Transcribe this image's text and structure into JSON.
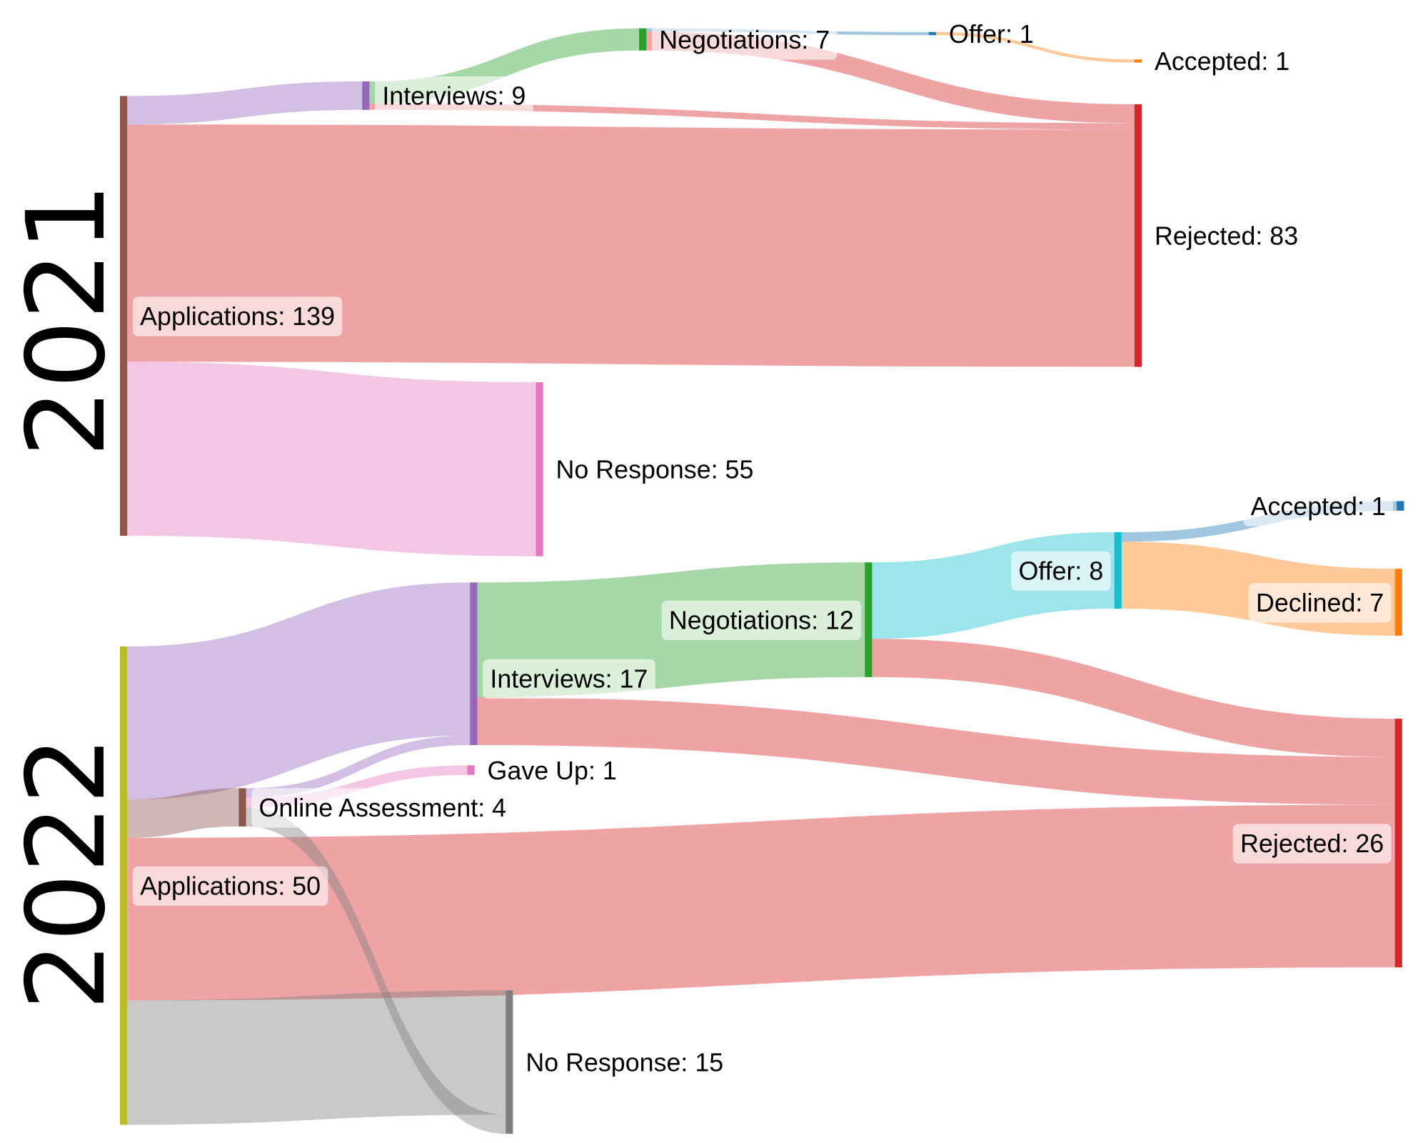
{
  "chart_data": [
    {
      "type": "sankey",
      "title": "2021",
      "nodes": [
        {
          "id": "app",
          "label": "Applications: 139",
          "color": "#8c564b"
        },
        {
          "id": "int",
          "label": "Interviews: 9",
          "color": "#9467bd"
        },
        {
          "id": "neg",
          "label": "Negotiations: 7",
          "color": "#2ca02c"
        },
        {
          "id": "off",
          "label": "Offer: 1",
          "color": "#1f77b4"
        },
        {
          "id": "acc",
          "label": "Accepted: 1",
          "color": "#ff7f0e"
        },
        {
          "id": "rej",
          "label": "Rejected: 83",
          "color": "#d62728"
        },
        {
          "id": "nor",
          "label": "No Response: 55",
          "color": "#e377c2"
        }
      ],
      "links": [
        {
          "source": "app",
          "target": "int",
          "value": 9
        },
        {
          "source": "app",
          "target": "rej",
          "value": 75
        },
        {
          "source": "app",
          "target": "nor",
          "value": 55
        },
        {
          "source": "int",
          "target": "neg",
          "value": 7
        },
        {
          "source": "int",
          "target": "rej",
          "value": 2
        },
        {
          "source": "neg",
          "target": "off",
          "value": 1
        },
        {
          "source": "neg",
          "target": "rej",
          "value": 6
        },
        {
          "source": "off",
          "target": "acc",
          "value": 1
        }
      ]
    },
    {
      "type": "sankey",
      "title": "2022",
      "nodes": [
        {
          "id": "app",
          "label": "Applications: 50",
          "color": "#bcbd22"
        },
        {
          "id": "int",
          "label": "Interviews: 17",
          "color": "#9467bd"
        },
        {
          "id": "oa",
          "label": "Online Assessment: 4",
          "color": "#8c564b"
        },
        {
          "id": "gu",
          "label": "Gave Up: 1",
          "color": "#e377c2"
        },
        {
          "id": "neg",
          "label": "Negotiations: 12",
          "color": "#2ca02c"
        },
        {
          "id": "off",
          "label": "Offer: 8",
          "color": "#17becf"
        },
        {
          "id": "acc",
          "label": "Accepted: 1",
          "color": "#1f77b4"
        },
        {
          "id": "dec",
          "label": "Declined: 7",
          "color": "#ff7f0e"
        },
        {
          "id": "rej",
          "label": "Rejected: 26",
          "color": "#d62728"
        },
        {
          "id": "nor",
          "label": "No Response: 15",
          "color": "#7f7f7f"
        }
      ],
      "links": [
        {
          "source": "app",
          "target": "int",
          "value": 16
        },
        {
          "source": "app",
          "target": "oa",
          "value": 4
        },
        {
          "source": "app",
          "target": "rej",
          "value": 17
        },
        {
          "source": "app",
          "target": "nor",
          "value": 13
        },
        {
          "source": "oa",
          "target": "int",
          "value": 1
        },
        {
          "source": "oa",
          "target": "gu",
          "value": 1
        },
        {
          "source": "oa",
          "target": "nor",
          "value": 2
        },
        {
          "source": "int",
          "target": "neg",
          "value": 12
        },
        {
          "source": "int",
          "target": "rej",
          "value": 5
        },
        {
          "source": "neg",
          "target": "off",
          "value": 8
        },
        {
          "source": "neg",
          "target": "rej",
          "value": 4
        },
        {
          "source": "off",
          "target": "acc",
          "value": 1
        },
        {
          "source": "off",
          "target": "dec",
          "value": 7
        }
      ]
    }
  ]
}
